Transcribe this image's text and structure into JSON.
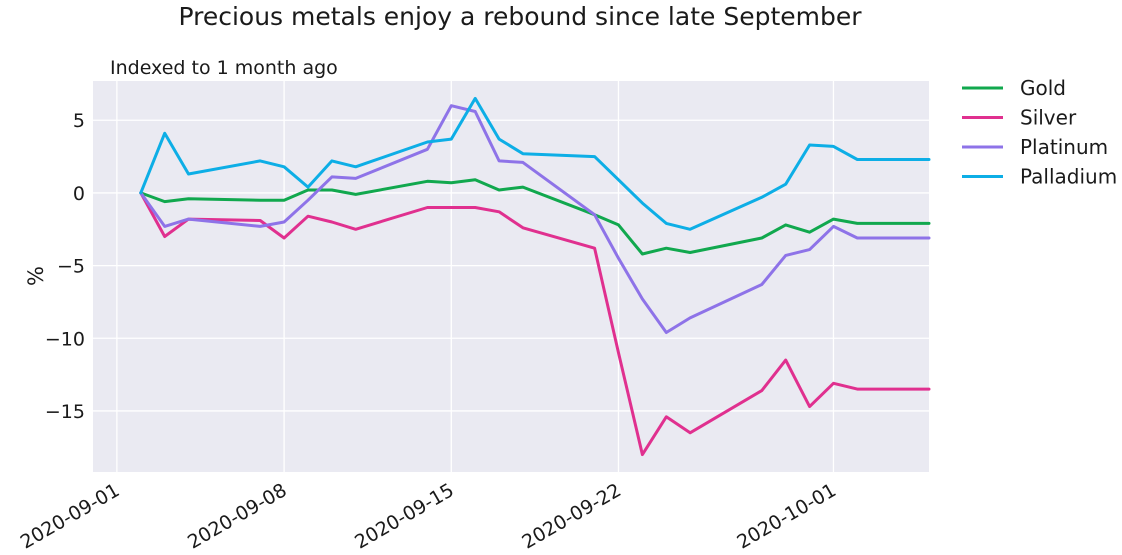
{
  "chart_data": {
    "type": "line",
    "title": "Precious metals enjoy a rebound since late September",
    "subtitle": "Indexed to 1 month ago",
    "ylabel": "%",
    "xlabel": "",
    "ylim": [
      -19.2,
      7.7
    ],
    "xlim": [
      "2020-08-31",
      "2020-10-05"
    ],
    "grid": true,
    "legend_position": "outside-right",
    "x_ticks": [
      "2020-09-01",
      "2020-09-08",
      "2020-09-15",
      "2020-09-22",
      "2020-10-01"
    ],
    "y_ticks": [
      5,
      0,
      -5,
      -10,
      -15
    ],
    "y_tick_labels": [
      "5",
      "0",
      "−5",
      "−10",
      "−15"
    ],
    "x": [
      "2020-09-02",
      "2020-09-03",
      "2020-09-04",
      "2020-09-07",
      "2020-09-08",
      "2020-09-09",
      "2020-09-10",
      "2020-09-11",
      "2020-09-14",
      "2020-09-15",
      "2020-09-16",
      "2020-09-17",
      "2020-09-18",
      "2020-09-21",
      "2020-09-22",
      "2020-09-23",
      "2020-09-24",
      "2020-09-25",
      "2020-09-28",
      "2020-09-29",
      "2020-09-30",
      "2020-10-01",
      "2020-10-02",
      "2020-10-05"
    ],
    "series": [
      {
        "name": "Gold",
        "color": "#11a84e",
        "values": [
          0,
          -0.6,
          -0.4,
          -0.5,
          -0.5,
          0.2,
          0.2,
          -0.1,
          0.8,
          0.7,
          0.9,
          0.2,
          0.4,
          -1.5,
          -2.2,
          -4.2,
          -3.8,
          -4.1,
          -3.1,
          -2.2,
          -2.7,
          -1.8,
          -2.1,
          -2.1
        ]
      },
      {
        "name": "Silver",
        "color": "#e0308f",
        "values": [
          0,
          -3.0,
          -1.8,
          -1.9,
          -3.1,
          -1.6,
          -2.0,
          -2.5,
          -1.0,
          -1.0,
          -1.0,
          -1.3,
          -2.4,
          -3.8,
          -11.0,
          -18.0,
          -15.4,
          -16.5,
          -13.6,
          -11.5,
          -14.7,
          -13.1,
          -13.5,
          -13.5
        ]
      },
      {
        "name": "Platinum",
        "color": "#8e73e8",
        "values": [
          0,
          -2.3,
          -1.8,
          -2.3,
          -2.0,
          -0.5,
          1.1,
          1.0,
          3.0,
          6.0,
          5.6,
          2.2,
          2.1,
          -1.5,
          -4.5,
          -7.3,
          -9.6,
          -8.6,
          -6.3,
          -4.3,
          -3.9,
          -2.3,
          -3.1,
          -3.1
        ]
      },
      {
        "name": "Palladium",
        "color": "#0daee6",
        "values": [
          0,
          4.1,
          1.3,
          2.2,
          1.8,
          0.4,
          2.2,
          1.8,
          3.5,
          3.7,
          6.5,
          3.7,
          2.7,
          2.5,
          0.9,
          -0.7,
          -2.1,
          -2.5,
          -0.3,
          0.6,
          3.3,
          3.2,
          2.3,
          2.3
        ]
      }
    ]
  }
}
